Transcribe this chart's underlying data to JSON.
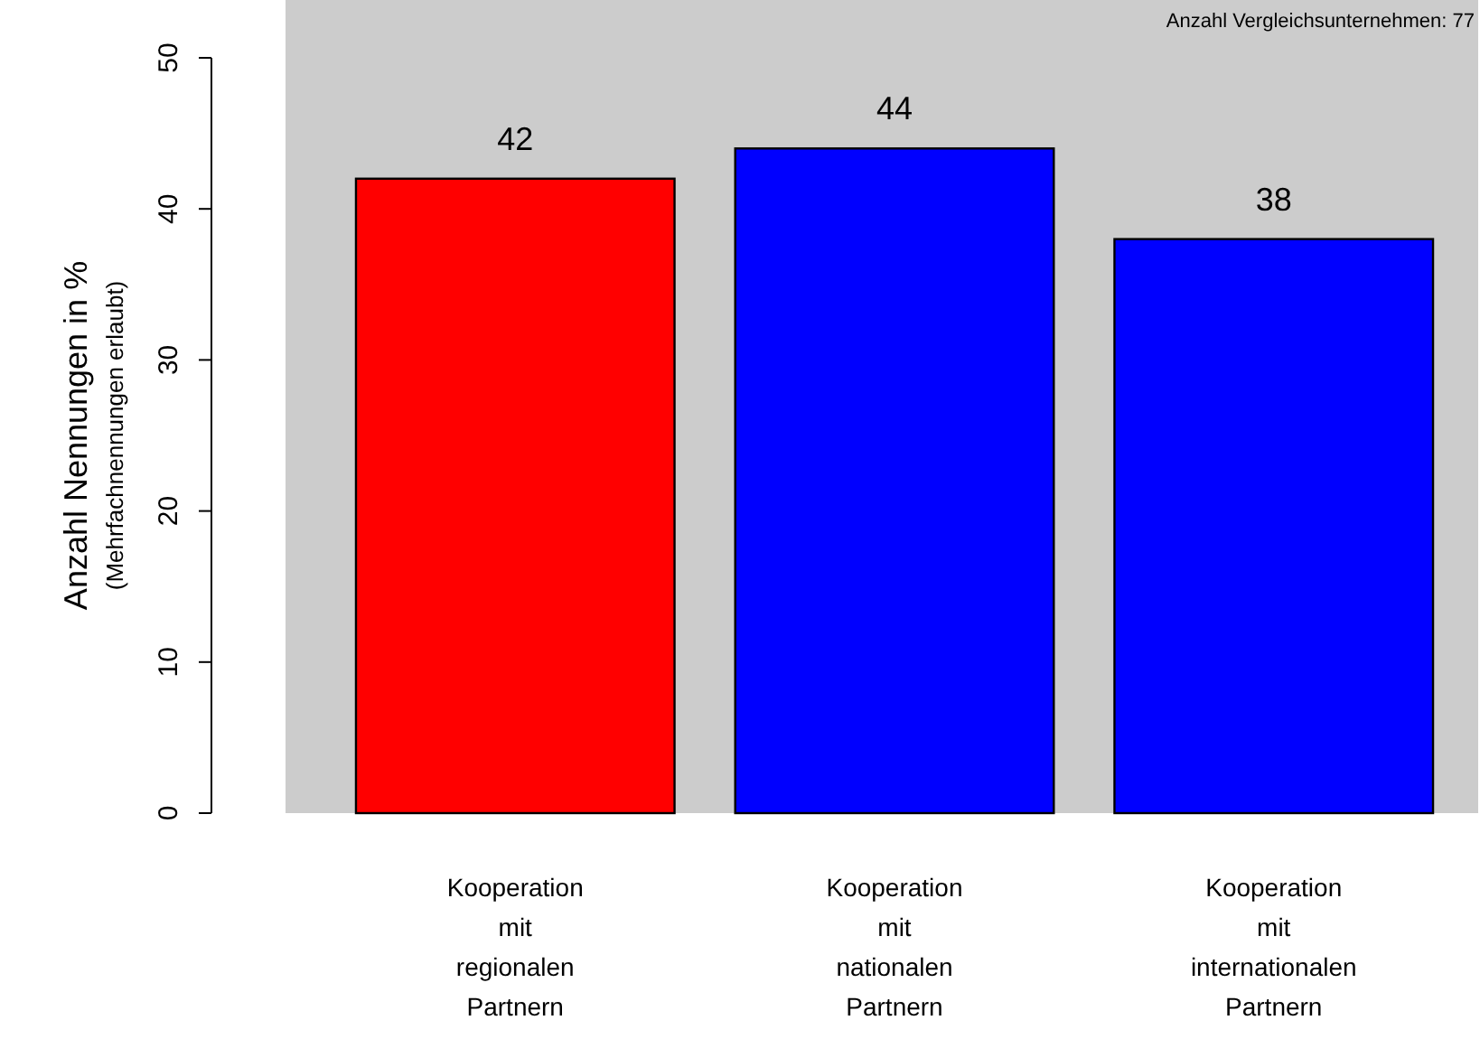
{
  "chart_data": {
    "type": "bar",
    "ylabel": "Anzahl Nennungen in %\n(Mehrfachnennungen erlaubt)",
    "categories": [
      "Kooperation\nmit\nregionalen\nPartnern",
      "Kooperation\nmit\nnationalen\nPartnern",
      "Kooperation\nmit\ninternationalen\nPartnern"
    ],
    "values": [
      42,
      44,
      38
    ],
    "colors": [
      "#ff0000",
      "#0000ff",
      "#0000ff"
    ],
    "data_labels": true,
    "ylim": [
      0,
      50
    ],
    "yticks": [
      0,
      10,
      20,
      30,
      40,
      50
    ],
    "grid": false,
    "annotations": [
      "Anzahl Vergleichsunternehmen: 77"
    ]
  }
}
